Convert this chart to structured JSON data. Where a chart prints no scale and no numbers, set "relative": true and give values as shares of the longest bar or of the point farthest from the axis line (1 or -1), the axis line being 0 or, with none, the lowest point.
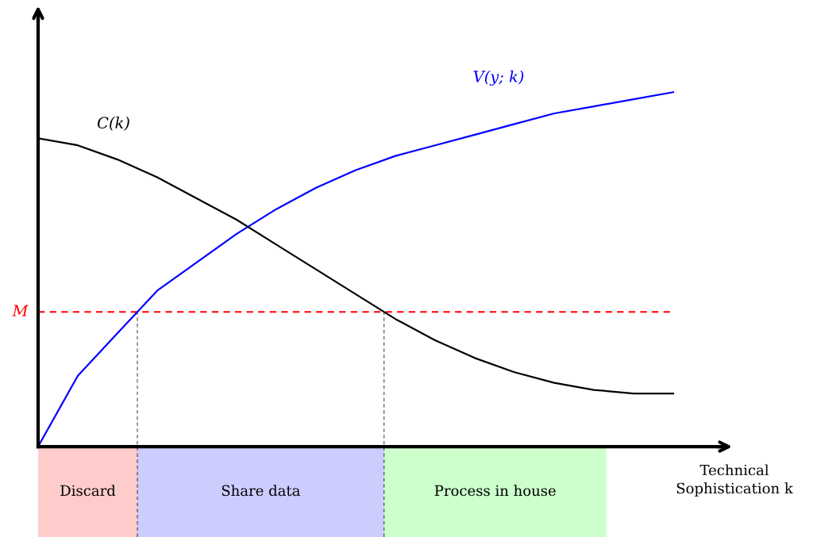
{
  "chart_data": {
    "type": "line",
    "relative": true,
    "xlabel": "Technical\nSophistication k",
    "categories": [
      null,
      null,
      null,
      null,
      null,
      null,
      null,
      null,
      null,
      null,
      null,
      null,
      null,
      null,
      null,
      null,
      null
    ],
    "series": [
      {
        "name": "V(y; k)",
        "color": "#0000ff",
        "values": [
          0,
          0.2,
          0.32,
          0.44,
          0.52,
          0.6,
          0.67,
          0.73,
          0.78,
          0.82,
          0.85,
          0.88,
          0.91,
          0.94,
          0.96,
          0.98,
          1
        ]
      },
      {
        "name": "C(k)",
        "color": "#000000",
        "values": [
          0.87,
          0.85,
          0.81,
          0.76,
          0.7,
          0.64,
          0.57,
          0.5,
          0.43,
          0.36,
          0.3,
          0.25,
          0.21,
          0.18,
          0.16,
          0.15,
          0.15
        ]
      }
    ],
    "ref_lines": [
      {
        "axis": "y",
        "value": 0.38,
        "label": "M",
        "color": "#ff0000",
        "line_style": "dashed"
      }
    ],
    "annotations": [
      "Discard",
      "Share data",
      "Process in house"
    ]
  }
}
